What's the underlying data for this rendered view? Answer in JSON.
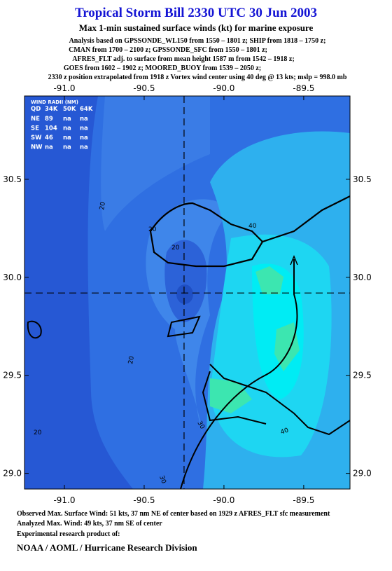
{
  "header": {
    "title": "Tropical Storm Bill 2330 UTC 30 Jun 2003",
    "subtitle": "Max 1-min sustained surface winds (kt) for marine exposure",
    "notes": [
      "Analysis based on  GPSSONDE_WL150 from 1550 – 1801 z;  SHIP from 1818 – 1750 z;",
      "CMAN from 1700 – 2100 z;  GPSSONDE_SFC from 1550 – 1801 z;",
      "AFRES_FLT adj. to surface from mean height 1587 m from 1542 – 1918 z;",
      "GOES from 1602 – 1902 z;  MOORED_BUOY from 1539 – 2050 z;",
      "2330 z position extrapolated from 1918 z Vortex wind center using 40 deg @ 13 kts; mslp = 998.0 mb"
    ]
  },
  "map": {
    "xlim": [
      -91.25,
      -89.21
    ],
    "ylim": [
      28.92,
      30.925
    ],
    "xticks": [
      {
        "value": -91,
        "label": "-91.0"
      },
      {
        "value": -90.5,
        "label": "-90.5"
      },
      {
        "value": -90,
        "label": "-90.0"
      },
      {
        "value": -89.5,
        "label": "-89.5"
      }
    ],
    "yticks": [
      {
        "value": 29,
        "label": "29.0"
      },
      {
        "value": 29.5,
        "label": "29.5"
      },
      {
        "value": 30,
        "label": "30.0"
      },
      {
        "value": 30.5,
        "label": "30.5"
      }
    ],
    "center": {
      "lon": -90.25,
      "lat": 29.92
    },
    "contour_labels": [
      "20",
      "20",
      "20",
      "20",
      "30",
      "30",
      "40",
      "40",
      "20"
    ]
  },
  "wind_radii": {
    "title": "WIND RADII (NM)",
    "columns": [
      "QD",
      "34K",
      "50K",
      "64K"
    ],
    "rows": [
      [
        "NE",
        89,
        "na",
        "na"
      ],
      [
        "SE",
        104,
        "na",
        "na"
      ],
      [
        "SW",
        46,
        "na",
        "na"
      ],
      [
        "NW",
        "na",
        "na",
        "na"
      ]
    ]
  },
  "footer": {
    "lines": [
      "Observed Max. Surface Wind: 51 kts, 37 nm NE of center based on 1929 z AFRES_FLT sfc measurement",
      "Analyzed Max. Wind: 49 kts, 37 nm SE of center",
      "Experimental research product of:"
    ],
    "org": "NOAA / AOML / Hurricane Research Division"
  }
}
